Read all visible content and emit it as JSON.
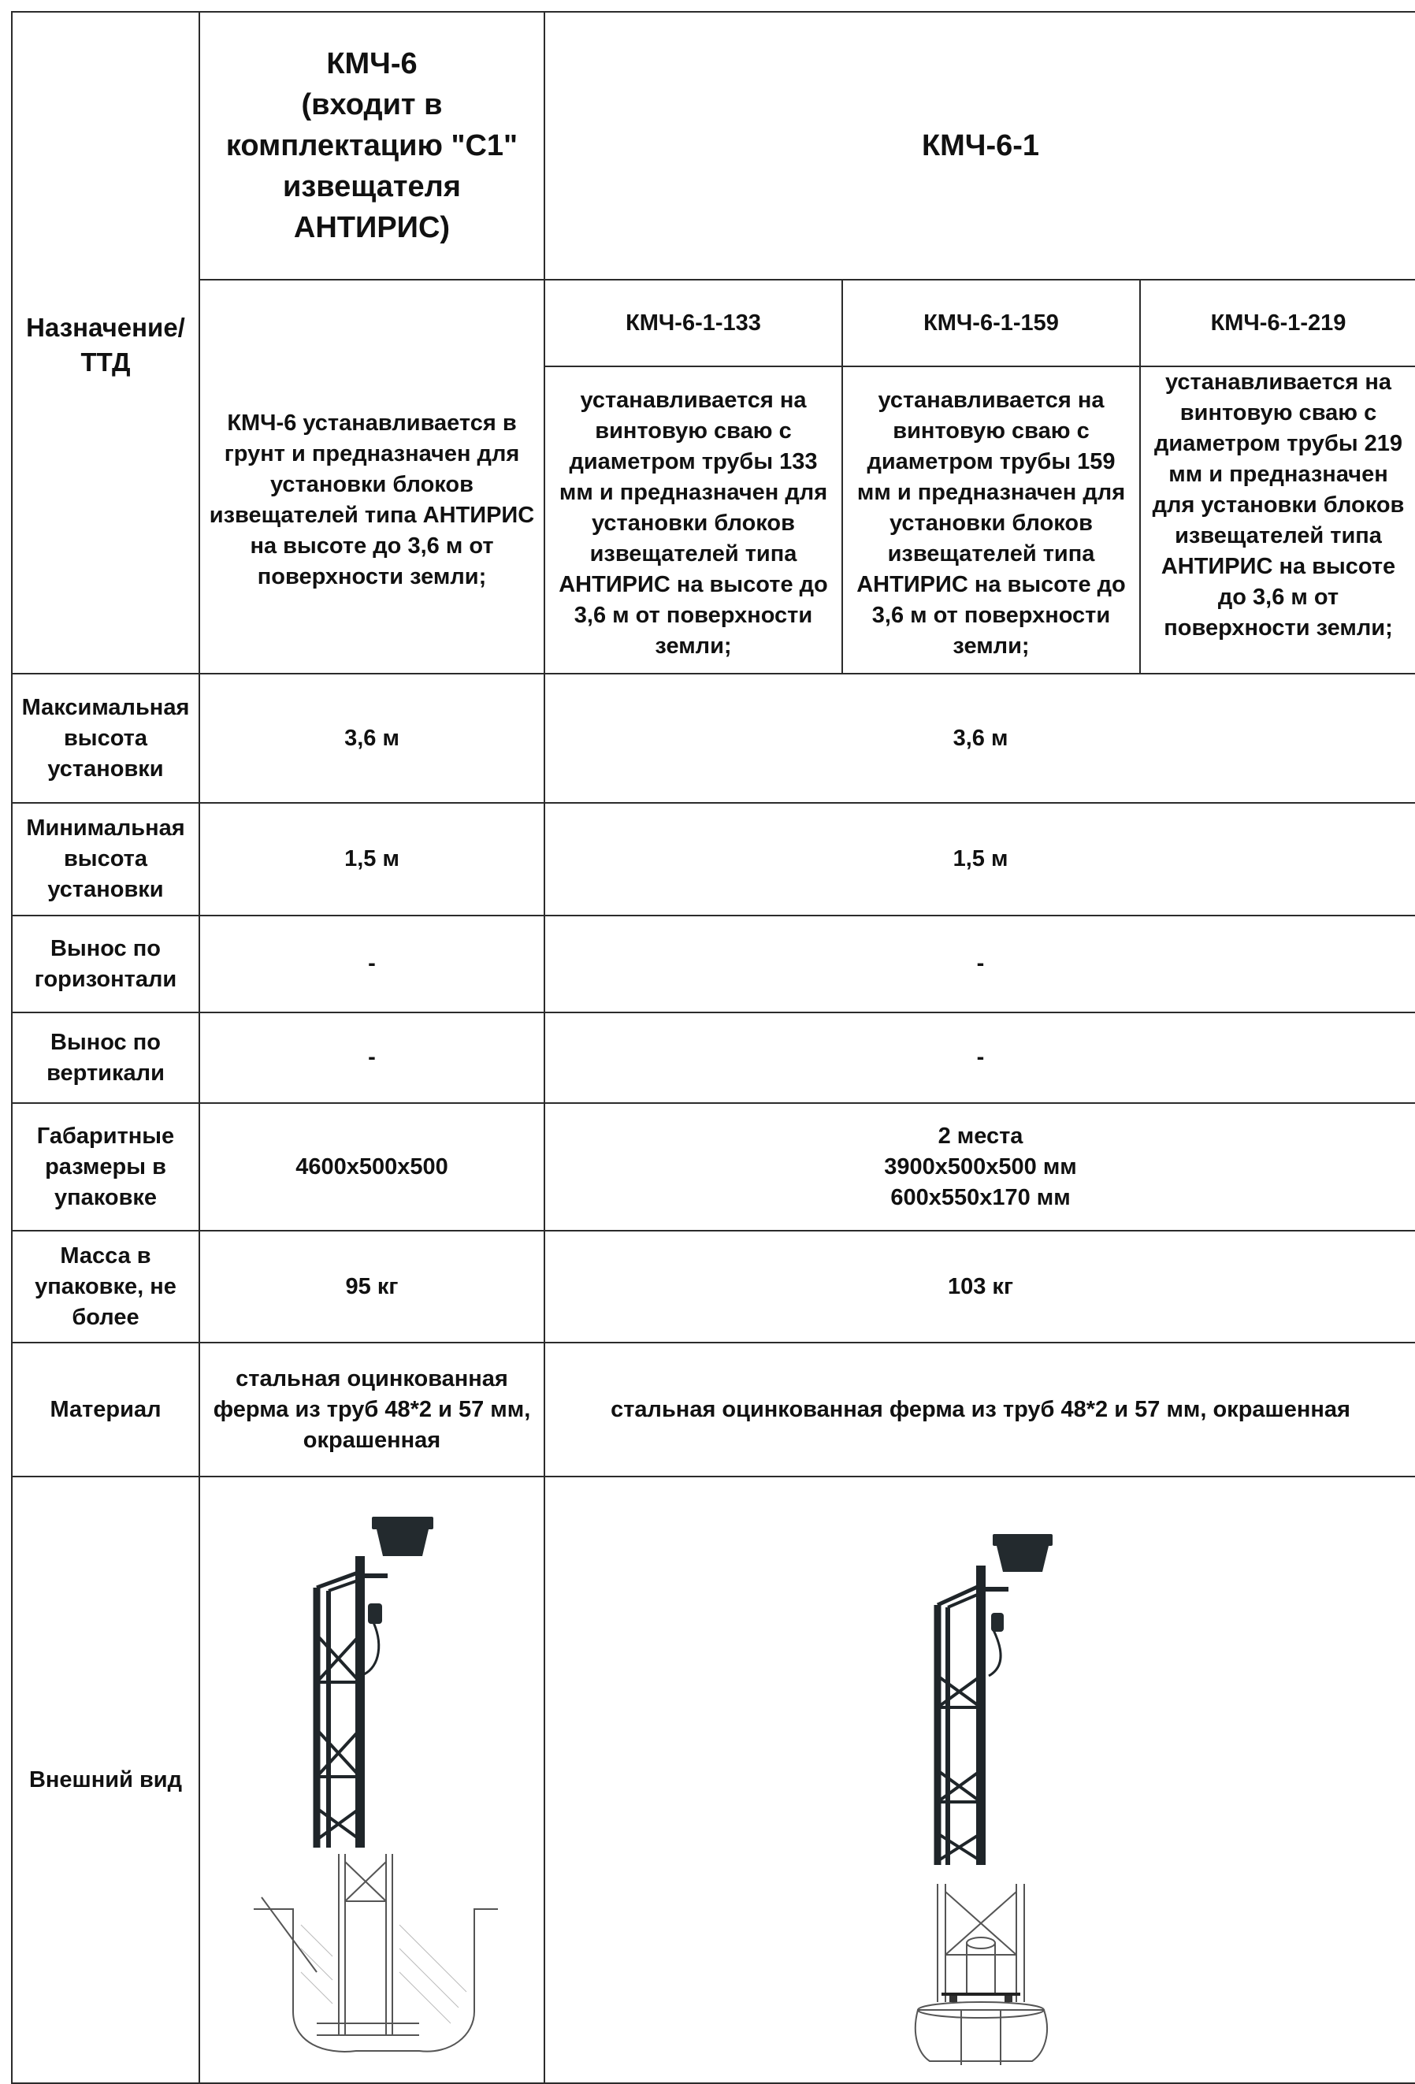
{
  "table": {
    "row_header": "Назначение/ ТТД",
    "kmch6": {
      "title_lines": [
        "КМЧ-6",
        "(входит в",
        "комплектацию \"С1\"",
        "извещателя",
        "АНТИРИС)"
      ],
      "description": "КМЧ-6 устанавливается в грунт и предназначен для установки блоков извещателей типа АНТИРИС на высоте до 3,6 м от поверхности земли;"
    },
    "kmch61": {
      "title": "КМЧ-6-1",
      "variants": [
        {
          "name": "КМЧ-6-1-133",
          "description": "устанавливается на винтовую сваю с диаметром трубы 133 мм и предназначен для установки блоков извещателей типа АНТИРИС на высоте до 3,6 м от поверхности земли;"
        },
        {
          "name": "КМЧ-6-1-159",
          "description": "устанавливается на винтовую сваю с диаметром трубы 159 мм и предназначен для установки блоков извещателей типа АНТИРИС на высоте до 3,6 м от поверхности земли;"
        },
        {
          "name": "КМЧ-6-1-219",
          "description": "устанавливается на винтовую сваю с диаметром трубы 219 мм и предназначен для установки блоков извещателей типа АНТИРИС на высоте до 3,6 м от поверхности земли;"
        }
      ]
    },
    "rows": [
      {
        "label": "Максимальная высота установки",
        "kmch6": "3,6 м",
        "kmch61": "3,6 м"
      },
      {
        "label": "Минимальная высота установки",
        "kmch6": "1,5 м",
        "kmch61": "1,5 м"
      },
      {
        "label": "Вынос по горизонтали",
        "kmch6": "-",
        "kmch61": "-"
      },
      {
        "label": "Вынос по вертикали",
        "kmch6": "-",
        "kmch61": "-"
      },
      {
        "label": "Габаритные размеры в упаковке",
        "kmch6": "4600х500х500",
        "kmch61_lines": [
          "2 места",
          "3900х500х500 мм",
          "600х550х170 мм"
        ]
      },
      {
        "label": "Масса в упаковке, не более",
        "kmch6": "95 кг",
        "kmch61": "103 кг"
      },
      {
        "label": "Материал",
        "kmch6": "стальная оцинкованная ферма из труб 48*2 и 57 мм, окрашенная",
        "kmch61": "стальная оцинкованная ферма из труб 48*2 и 57 мм, окрашенная"
      }
    ],
    "appearance_label": "Внешний вид"
  }
}
